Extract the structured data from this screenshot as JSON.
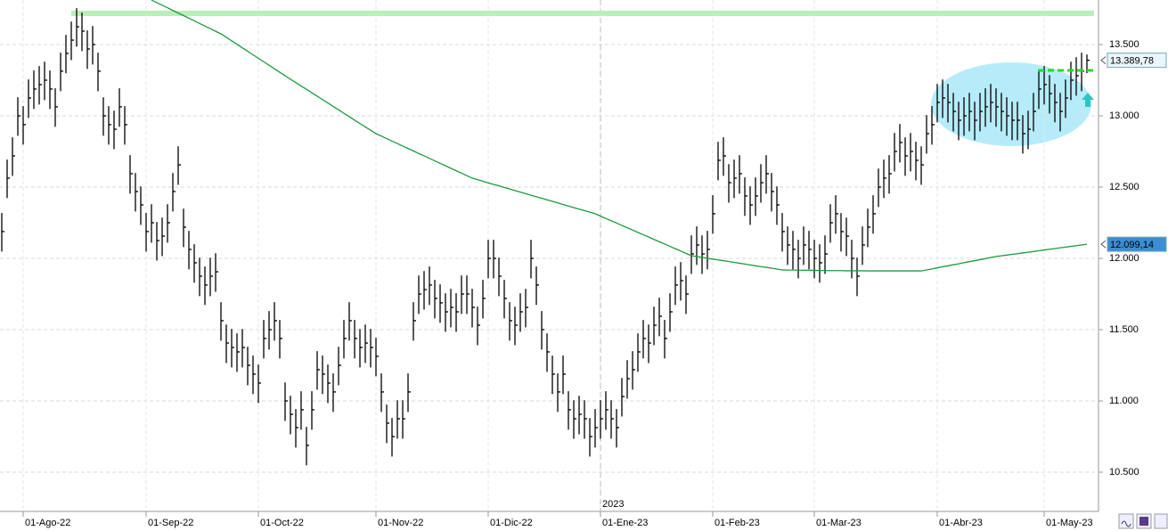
{
  "chart_data": {
    "type": "ohlc",
    "bar_color": "#000000",
    "ylim": [
      10225,
      13812.5
    ],
    "yticks": [
      {
        "value": 10500,
        "label": "10.500"
      },
      {
        "value": 11000,
        "label": "11.000"
      },
      {
        "value": 11500,
        "label": "11.500"
      },
      {
        "value": 12000,
        "label": "12.000"
      },
      {
        "value": 12500,
        "label": "12.500"
      },
      {
        "value": 13000,
        "label": "13.000"
      },
      {
        "value": 13500,
        "label": "13.500"
      }
    ],
    "grid": true,
    "year_label": "2023",
    "categories": [
      null,
      null,
      null,
      null,
      "01-Ago-22",
      null,
      null,
      null,
      null,
      null,
      null,
      null,
      null,
      null,
      null,
      null,
      null,
      null,
      null,
      null,
      null,
      null,
      null,
      null,
      null,
      null,
      null,
      "01-Sep-22",
      null,
      null,
      null,
      null,
      null,
      null,
      null,
      null,
      null,
      null,
      null,
      null,
      null,
      null,
      null,
      null,
      null,
      null,
      null,
      null,
      "01-Oct-22",
      null,
      null,
      null,
      null,
      null,
      null,
      null,
      null,
      null,
      null,
      null,
      null,
      null,
      null,
      null,
      null,
      null,
      null,
      null,
      null,
      null,
      "01-Nov-22",
      null,
      null,
      null,
      null,
      null,
      null,
      null,
      null,
      null,
      null,
      null,
      null,
      null,
      null,
      null,
      null,
      null,
      null,
      null,
      null,
      "01-Dic-22",
      null,
      null,
      null,
      null,
      null,
      null,
      null,
      null,
      null,
      null,
      null,
      null,
      null,
      null,
      null,
      null,
      null,
      null,
      null,
      null,
      "01-Ene-23",
      null,
      null,
      null,
      null,
      null,
      null,
      null,
      null,
      null,
      null,
      null,
      null,
      null,
      null,
      null,
      null,
      null,
      null,
      null,
      null,
      "01-Feb-23",
      null,
      null,
      null,
      null,
      null,
      null,
      null,
      null,
      null,
      null,
      null,
      null,
      null,
      null,
      null,
      null,
      null,
      null,
      "01-Mar-23",
      null,
      null,
      null,
      null,
      null,
      null,
      null,
      null,
      null,
      null,
      null,
      null,
      null,
      null,
      null,
      null,
      null,
      null,
      null,
      null,
      null,
      null,
      "01-Abr-23",
      null,
      null,
      null,
      null,
      null,
      null,
      null,
      null,
      null,
      null,
      null,
      null,
      null,
      null,
      null,
      null,
      null,
      null,
      null,
      "01-May-23",
      null,
      null,
      null,
      null,
      null,
      null,
      null,
      null
    ],
    "high": [
      12318,
      12693,
      12849,
      13130,
      13068,
      13255,
      13318,
      13349,
      13380,
      13318,
      13193,
      13443,
      13568,
      13661,
      13755,
      13724,
      13599,
      13630,
      13443,
      13130,
      13068,
      13036,
      13193,
      13068,
      12724,
      12599,
      12505,
      12318,
      12380,
      12255,
      12286,
      12380,
      12599,
      12786,
      12349,
      12193,
      12099,
      12005,
      11943,
      12005,
      12036,
      11693,
      11536,
      11505,
      11474,
      11505,
      11380,
      11318,
      11255,
      11568,
      11630,
      11693,
      11568,
      11130,
      11036,
      10943,
      11068,
      10818,
      11068,
      11349,
      11318,
      11255,
      11193,
      11380,
      11568,
      11693,
      11568,
      11505,
      11536,
      11505,
      11443,
      11193,
      10974,
      10880,
      11005,
      11005,
      11193,
      11693,
      11880,
      11911,
      11943,
      11849,
      11818,
      11755,
      11786,
      11755,
      11880,
      11880,
      11786,
      11661,
      11849,
      12130,
      12130,
      12005,
      11849,
      11693,
      11661,
      11755,
      11786,
      12130,
      11943,
      11630,
      11474,
      11318,
      11193,
      11318,
      11068,
      11005,
      11036,
      11005,
      10880,
      10943,
      11005,
      11068,
      11005,
      10943,
      11161,
      11286,
      11349,
      11474,
      11568,
      11536,
      11661,
      11724,
      11568,
      11755,
      11943,
      11974,
      11880,
      12161,
      12224,
      12161,
      12193,
      12443,
      12818,
      12849,
      12661,
      12693,
      12724,
      12568,
      12505,
      12568,
      12661,
      12724,
      12599,
      12505,
      12318,
      12224,
      12193,
      12130,
      12224,
      12193,
      12130,
      12099,
      12161,
      12380,
      12443,
      12318,
      12286,
      12130,
      12005,
      12224,
      12349,
      12443,
      12630,
      12693,
      12724,
      12880,
      12943,
      12849,
      12880,
      12818,
      12786,
      13005,
      13068,
      13224,
      13255,
      13224,
      13161,
      13099,
      13130,
      13161,
      13099,
      13161,
      13193,
      13224,
      13193,
      13161,
      13130,
      13099,
      13099,
      13005,
      13036,
      13161,
      13318,
      13349,
      13286,
      13224,
      13161,
      13255,
      13380,
      13411,
      13443,
      13430
    ],
    "low": [
      12048,
      12423,
      12579,
      12860,
      12798,
      12985,
      13048,
      13079,
      13110,
      13048,
      12923,
      13173,
      13298,
      13391,
      13485,
      13454,
      13329,
      13360,
      13173,
      12860,
      12798,
      12766,
      12923,
      12798,
      12454,
      12329,
      12235,
      12048,
      12110,
      11985,
      12016,
      12110,
      12329,
      12516,
      12079,
      11923,
      11829,
      11735,
      11673,
      11735,
      11766,
      11423,
      11266,
      11235,
      11204,
      11235,
      11110,
      11048,
      10985,
      11298,
      11360,
      11423,
      11298,
      10860,
      10766,
      10673,
      10798,
      10548,
      10798,
      11079,
      11048,
      10985,
      10923,
      11110,
      11298,
      11423,
      11298,
      11235,
      11266,
      11235,
      11173,
      10923,
      10704,
      10610,
      10735,
      10735,
      10923,
      11423,
      11610,
      11641,
      11673,
      11579,
      11548,
      11485,
      11516,
      11485,
      11610,
      11610,
      11516,
      11391,
      11579,
      11860,
      11860,
      11735,
      11579,
      11423,
      11391,
      11485,
      11516,
      11860,
      11673,
      11360,
      11204,
      11048,
      10923,
      11048,
      10798,
      10735,
      10766,
      10735,
      10610,
      10673,
      10735,
      10798,
      10735,
      10673,
      10891,
      11016,
      11079,
      11204,
      11298,
      11266,
      11391,
      11454,
      11298,
      11485,
      11673,
      11704,
      11610,
      11891,
      11954,
      11891,
      11923,
      12173,
      12548,
      12579,
      12391,
      12423,
      12454,
      12298,
      12235,
      12298,
      12391,
      12454,
      12329,
      12235,
      12048,
      11954,
      11923,
      11860,
      11954,
      11923,
      11860,
      11829,
      11891,
      12110,
      12173,
      12048,
      12016,
      11860,
      11735,
      11954,
      12079,
      12173,
      12360,
      12423,
      12454,
      12610,
      12673,
      12579,
      12610,
      12548,
      12516,
      12735,
      12798,
      12954,
      12985,
      12954,
      12891,
      12829,
      12860,
      12891,
      12829,
      12891,
      12923,
      12954,
      12923,
      12891,
      12860,
      12829,
      12829,
      12735,
      12766,
      12891,
      13048,
      13079,
      13016,
      12954,
      12891,
      12985,
      13110,
      13141,
      13173,
      13300
    ],
    "close": [
      12188,
      12563,
      12719,
      13000,
      12938,
      13125,
      13188,
      13219,
      13250,
      13188,
      13063,
      13313,
      13438,
      13531,
      13625,
      13594,
      13469,
      13500,
      13313,
      13000,
      12938,
      12906,
      13063,
      12938,
      12594,
      12469,
      12375,
      12188,
      12250,
      12125,
      12156,
      12250,
      12469,
      12656,
      12219,
      12063,
      11969,
      11875,
      11813,
      11875,
      11906,
      11563,
      11406,
      11375,
      11344,
      11375,
      11250,
      11188,
      11125,
      11438,
      11500,
      11563,
      11438,
      11000,
      10906,
      10813,
      10938,
      10688,
      10938,
      11219,
      11188,
      11125,
      11063,
      11250,
      11438,
      11563,
      11438,
      11375,
      11406,
      11375,
      11313,
      11063,
      10844,
      10750,
      10875,
      10875,
      11063,
      11563,
      11750,
      11781,
      11813,
      11719,
      11688,
      11625,
      11656,
      11625,
      11750,
      11750,
      11656,
      11531,
      11719,
      12000,
      12000,
      11875,
      11719,
      11563,
      11531,
      11625,
      11656,
      12000,
      11813,
      11500,
      11344,
      11188,
      11063,
      11188,
      10938,
      10875,
      10906,
      10875,
      10750,
      10813,
      10875,
      10938,
      10875,
      10813,
      11031,
      11156,
      11219,
      11344,
      11438,
      11406,
      11531,
      11594,
      11438,
      11625,
      11813,
      11844,
      11750,
      12031,
      12094,
      12031,
      12063,
      12313,
      12688,
      12719,
      12531,
      12563,
      12594,
      12438,
      12375,
      12438,
      12531,
      12594,
      12469,
      12375,
      12188,
      12094,
      12063,
      12000,
      12094,
      12063,
      12000,
      11969,
      12031,
      12250,
      12313,
      12188,
      12156,
      12000,
      11875,
      12094,
      12219,
      12313,
      12500,
      12563,
      12594,
      12750,
      12813,
      12719,
      12750,
      12688,
      12656,
      12875,
      12938,
      13094,
      13125,
      13094,
      13031,
      12969,
      13000,
      13031,
      12969,
      13031,
      13063,
      13094,
      13063,
      13031,
      13000,
      12969,
      12969,
      12875,
      12906,
      13031,
      13188,
      13219,
      13156,
      13094,
      13031,
      13125,
      13250,
      13281,
      13313,
      13389.78
    ],
    "moving_average": {
      "color": "#1f9a3e",
      "values": [
        null,
        null,
        null,
        null,
        null,
        null,
        null,
        null,
        null,
        null,
        null,
        null,
        null,
        null,
        null,
        null,
        null,
        null,
        null,
        null,
        null,
        null,
        null,
        null,
        null,
        null,
        null,
        null,
        13812,
        13794,
        13776,
        13758,
        13739,
        13721,
        13703,
        13685,
        13667,
        13648,
        13630,
        13612,
        13593,
        13575,
        13551,
        13526,
        13502,
        13477,
        13453,
        13428,
        13404,
        13379,
        13355,
        13330,
        13306,
        13281,
        13257,
        13233,
        13209,
        13186,
        13162,
        13138,
        13114,
        13090,
        13066,
        13042,
        13018,
        12994,
        12970,
        12946,
        12922,
        12899,
        12875,
        12858,
        12840,
        12823,
        12806,
        12788,
        12771,
        12754,
        12736,
        12719,
        12702,
        12684,
        12667,
        12650,
        12632,
        12615,
        12598,
        12580,
        12563,
        12552,
        12541,
        12530,
        12519,
        12509,
        12498,
        12487,
        12476,
        12465,
        12454,
        12443,
        12432,
        12422,
        12411,
        12400,
        12389,
        12378,
        12367,
        12356,
        12345,
        12335,
        12324,
        12313,
        12297,
        12280,
        12264,
        12248,
        12231,
        12215,
        12199,
        12182,
        12166,
        12150,
        12133,
        12117,
        12101,
        12084,
        12068,
        12052,
        12035,
        12019,
        12013,
        12007,
        12001,
        11995,
        11989,
        11984,
        11978,
        11972,
        11966,
        11960,
        11954,
        11948,
        11942,
        11937,
        11931,
        11925,
        11919,
        11918,
        11918,
        11917,
        11917,
        11916,
        11916,
        11915,
        11915,
        11914,
        11914,
        11914,
        11913,
        11913,
        11913,
        11913,
        11912,
        11912,
        11912,
        11912,
        11912,
        11912,
        11912,
        11912,
        11912,
        11912,
        11912,
        11919,
        11926,
        11934,
        11941,
        11948,
        11955,
        11962,
        11970,
        11977,
        11984,
        11991,
        11998,
        12006,
        12013,
        12018,
        12023,
        12028,
        12033,
        12038,
        12043,
        12048,
        12054,
        12059,
        12064,
        12069,
        12074,
        12079,
        12084,
        12089,
        12094,
        12099.14
      ]
    },
    "resistance": {
      "value": 13719,
      "color": "#b9efb9"
    },
    "breakout_level": {
      "value": 13319,
      "color": "#22dd22"
    },
    "last_price": {
      "value": 13389.78,
      "label": "13.389,78"
    },
    "ma_last": {
      "value": 12099.14,
      "label": "12.099,14"
    }
  }
}
